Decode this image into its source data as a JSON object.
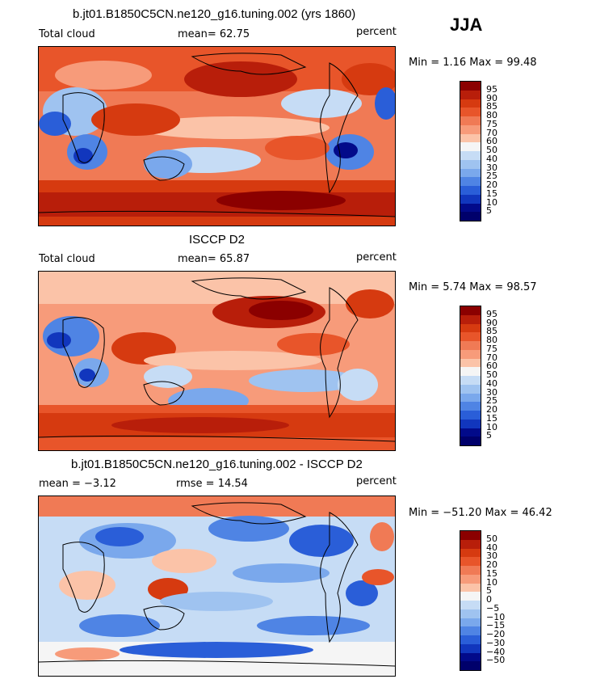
{
  "season": "JJA",
  "panels": [
    {
      "title": "b.jt01.B1850C5CN.ne120_g16.tuning.002 (yrs 1860)",
      "left_label": "Total cloud",
      "mid_label": "mean=  62.75",
      "units": "percent",
      "minmax": "Min =    1.16 Max =   99.48",
      "colorbar": {
        "labels": [
          "95",
          "90",
          "85",
          "80",
          "75",
          "70",
          "60",
          "50",
          "40",
          "30",
          "25",
          "20",
          "15",
          "10",
          "5"
        ],
        "colors": [
          "#8b0000",
          "#b81e0a",
          "#d63a10",
          "#e8552a",
          "#f07a55",
          "#f79b7a",
          "#fbc3a8",
          "#f5f5f5",
          "#c6dcf5",
          "#9fc3f0",
          "#7aa8ec",
          "#4f84e4",
          "#2a5ed8",
          "#1136bd",
          "#020a8a",
          "#00006b"
        ]
      }
    },
    {
      "title": "ISCCP D2",
      "left_label": "Total cloud",
      "mid_label": "mean=  65.87",
      "units": "percent",
      "minmax": "Min =    5.74 Max =   98.57",
      "colorbar": {
        "labels": [
          "95",
          "90",
          "85",
          "80",
          "75",
          "70",
          "60",
          "50",
          "40",
          "30",
          "25",
          "20",
          "15",
          "10",
          "5"
        ],
        "colors": [
          "#8b0000",
          "#b81e0a",
          "#d63a10",
          "#e8552a",
          "#f07a55",
          "#f79b7a",
          "#fbc3a8",
          "#f5f5f5",
          "#c6dcf5",
          "#9fc3f0",
          "#7aa8ec",
          "#4f84e4",
          "#2a5ed8",
          "#1136bd",
          "#020a8a",
          "#00006b"
        ]
      }
    },
    {
      "title": "b.jt01.B1850C5CN.ne120_g16.tuning.002 - ISCCP D2",
      "left_label": "mean =   −3.12",
      "mid_label": "rmse =   14.54",
      "units": "percent",
      "minmax": "Min = −51.20 Max =   46.42",
      "colorbar": {
        "labels": [
          "50",
          "40",
          "30",
          "20",
          "15",
          "10",
          "5",
          "0",
          "−5",
          "−10",
          "−15",
          "−20",
          "−30",
          "−40",
          "−50"
        ],
        "colors": [
          "#8b0000",
          "#b81e0a",
          "#d63a10",
          "#e8552a",
          "#f07a55",
          "#f79b7a",
          "#fbc3a8",
          "#f5f5f5",
          "#c6dcf5",
          "#9fc3f0",
          "#7aa8ec",
          "#4f84e4",
          "#2a5ed8",
          "#1136bd",
          "#020a8a",
          "#00006b"
        ]
      }
    }
  ]
}
